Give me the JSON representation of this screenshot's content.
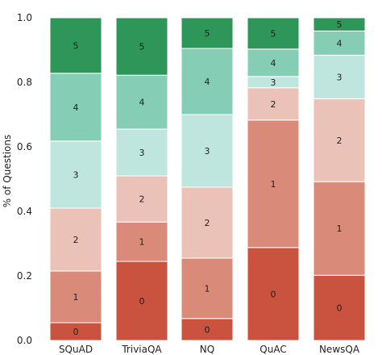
{
  "chart_data": {
    "type": "bar",
    "stacked": true,
    "categories": [
      "SQuAD",
      "TriviaQA",
      "NQ",
      "QuAC",
      "NewsQA"
    ],
    "series": [
      {
        "name": "0",
        "values": [
          0.055,
          0.245,
          0.068,
          0.288,
          0.202
        ],
        "color": "#c9533f"
      },
      {
        "name": "1",
        "values": [
          0.16,
          0.122,
          0.187,
          0.395,
          0.29
        ],
        "color": "#d98a79"
      },
      {
        "name": "2",
        "values": [
          0.195,
          0.143,
          0.22,
          0.1,
          0.257
        ],
        "color": "#ebc2b8"
      },
      {
        "name": "3",
        "values": [
          0.208,
          0.145,
          0.225,
          0.035,
          0.135
        ],
        "color": "#bfe6de"
      },
      {
        "name": "4",
        "values": [
          0.21,
          0.167,
          0.205,
          0.085,
          0.075
        ],
        "color": "#86cdb5"
      },
      {
        "name": "5",
        "values": [
          0.172,
          0.178,
          0.095,
          0.097,
          0.041
        ],
        "color": "#2e9659"
      }
    ],
    "ylabel": "% of Questions",
    "xlabel": "",
    "ylim": [
      0,
      1.0
    ],
    "yticks": [
      "0.0",
      "0.2",
      "0.4",
      "0.6",
      "0.8",
      "1.0"
    ],
    "grid": false,
    "legend": "none"
  }
}
